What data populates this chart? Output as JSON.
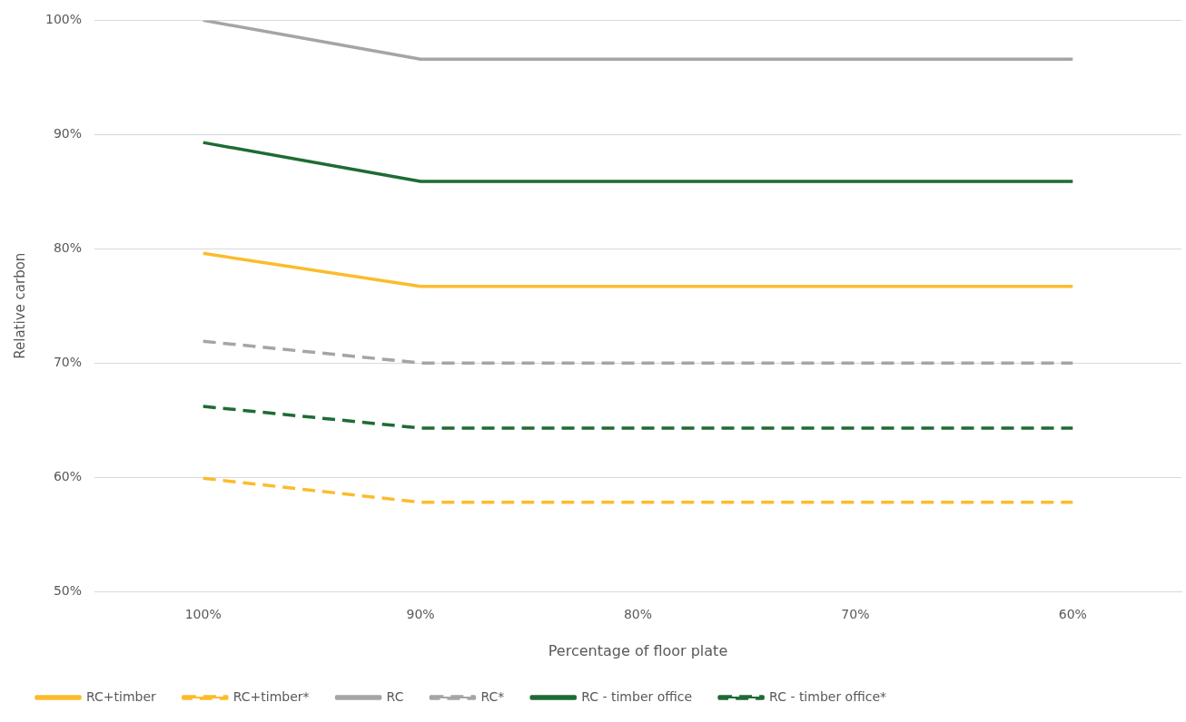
{
  "chart_data": {
    "type": "line",
    "xlabel": "Percentage of floor plate",
    "ylabel": "Relative carbon",
    "categories": [
      "100%",
      "90%",
      "80%",
      "70%",
      "60%"
    ],
    "ylim": [
      50,
      100
    ],
    "yticks": [
      {
        "value": 50,
        "label": "50%"
      },
      {
        "value": 60,
        "label": "60%"
      },
      {
        "value": 70,
        "label": "70%"
      },
      {
        "value": 80,
        "label": "80%"
      },
      {
        "value": 90,
        "label": "90%"
      },
      {
        "value": 100,
        "label": "100%"
      }
    ],
    "grid": "y",
    "legend": "bottom",
    "marker": "none",
    "series": [
      {
        "name": "RC+timber",
        "color": "#fbbc2c",
        "line_style": "solid",
        "values": [
          79.6,
          76.7,
          76.7,
          76.7,
          76.7
        ]
      },
      {
        "name": "RC+timber*",
        "color": "#fbbc2c",
        "line_style": "dashed",
        "values": [
          59.9,
          57.8,
          57.8,
          57.8,
          57.8
        ]
      },
      {
        "name": "RC",
        "color": "#a5a5a5",
        "line_style": "solid",
        "values": [
          100,
          96.6,
          96.6,
          96.6,
          96.6
        ]
      },
      {
        "name": "RC*",
        "color": "#a5a5a5",
        "line_style": "dashed",
        "values": [
          71.9,
          70,
          70,
          70,
          70
        ]
      },
      {
        "name": "RC - timber office",
        "color": "#1e6b35",
        "line_style": "solid",
        "values": [
          89.3,
          85.9,
          85.9,
          85.9,
          85.9
        ]
      },
      {
        "name": "RC - timber office*",
        "color": "#1e6b35",
        "line_style": "dashed",
        "values": [
          66.2,
          64.3,
          64.3,
          64.3,
          64.3
        ]
      }
    ]
  }
}
